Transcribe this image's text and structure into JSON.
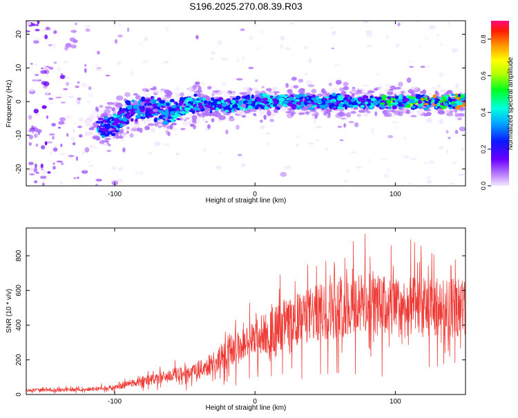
{
  "title": "S196.2025.270.08.39.R03",
  "chart_data": [
    {
      "type": "heatmap",
      "title": "S196.2025.270.08.39.R03",
      "xlabel": "Height of straight line (km)",
      "ylabel": "Frequency (Hz)",
      "xlim": [
        -163,
        150
      ],
      "ylim": [
        -25,
        24
      ],
      "x_ticks": [
        "-100",
        "0",
        "100"
      ],
      "y_ticks": [
        "-20",
        "-10",
        "0",
        "10",
        "20"
      ],
      "colorbar": {
        "label": "Normalized spectral amplitude",
        "range": [
          0,
          0.9
        ],
        "ticks": [
          "0.0",
          "0.2",
          "0.4",
          "0.6",
          "0.8"
        ]
      },
      "ridge": {
        "x": [
          -163,
          -150,
          -130,
          -112,
          -100,
          -90,
          -75,
          -60,
          -45,
          -30,
          -15,
          0,
          15,
          30,
          45,
          60,
          75,
          90,
          105,
          120,
          135,
          150
        ],
        "frequency": [
          -2,
          -4,
          -6,
          -8,
          -7,
          -3,
          -2,
          -3,
          -1,
          -1,
          -1,
          0,
          0,
          0,
          0,
          0,
          0,
          0,
          0,
          0,
          0,
          0
        ]
      }
    },
    {
      "type": "line",
      "xlabel": "Height of straight line (km)",
      "ylabel": "SNR (10 * v/v)",
      "xlim": [
        -163,
        150
      ],
      "ylim": [
        0,
        960
      ],
      "x_ticks": [
        "-100",
        "0",
        "100"
      ],
      "y_ticks": [
        "0",
        "200",
        "400",
        "600",
        "800"
      ],
      "color": "#ef3b36",
      "trend": {
        "x": [
          -163,
          -140,
          -120,
          -100,
          -90,
          -80,
          -70,
          -60,
          -50,
          -40,
          -30,
          -20,
          -10,
          0,
          10,
          20,
          30,
          40,
          50,
          60,
          70,
          80,
          90,
          100,
          110,
          120,
          130,
          140,
          150
        ],
        "y": [
          25,
          25,
          30,
          40,
          60,
          80,
          90,
          110,
          120,
          140,
          180,
          230,
          280,
          320,
          360,
          400,
          430,
          460,
          480,
          500,
          520,
          520,
          510,
          500,
          500,
          500,
          500,
          500,
          500
        ]
      }
    }
  ]
}
